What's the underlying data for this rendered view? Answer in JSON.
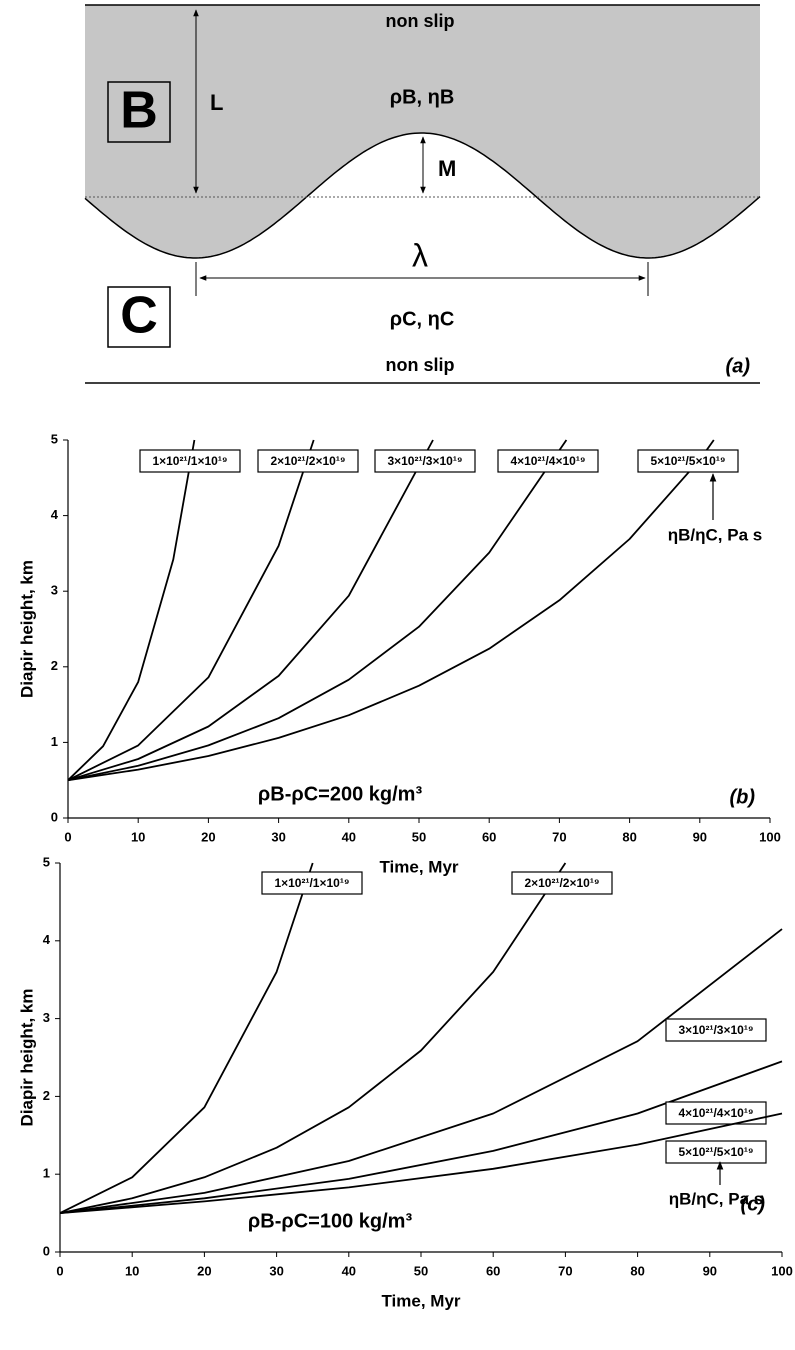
{
  "diagram": {
    "top_label": "non slip",
    "bottom_label": "non slip",
    "upper_layer": "B",
    "lower_layer": "C",
    "thickness": "L",
    "amplitude": "M",
    "wavelength": "λ",
    "upper_props": "ρB, ηB",
    "lower_props": "ρC, ηC",
    "panel": "(a)"
  },
  "chart_data": [
    {
      "type": "line",
      "panel": "(b)",
      "annotation": "ρB-ρC=200 kg/m³",
      "legend_title": "ηB/ηC, Pa s",
      "x_label": "Time, Myr",
      "y_label": "Diapir height, km",
      "xlim": [
        0,
        100
      ],
      "xticks": [
        0,
        10,
        20,
        30,
        40,
        50,
        60,
        70,
        80,
        90,
        100
      ],
      "ylim": [
        0,
        5
      ],
      "yticks": [
        0,
        1,
        2,
        3,
        4,
        5
      ],
      "series": [
        {
          "name": "1×10²¹/1×10¹⁹",
          "color": "#000000",
          "x": [
            0,
            5,
            10,
            15,
            18
          ],
          "values": [
            0.5,
            0.95,
            1.8,
            3.42,
            5.0
          ]
        },
        {
          "name": "2×10²¹/2×10¹⁹",
          "color": "#000000",
          "x": [
            0,
            10,
            20,
            30,
            35
          ],
          "values": [
            0.5,
            0.96,
            1.86,
            3.6,
            5.0
          ]
        },
        {
          "name": "3×10²¹/3×10¹⁹",
          "color": "#000000",
          "x": [
            0,
            10,
            20,
            30,
            40,
            52
          ],
          "values": [
            0.5,
            0.78,
            1.21,
            1.88,
            2.94,
            5.0
          ]
        },
        {
          "name": "4×10²¹/4×10¹⁹",
          "color": "#000000",
          "x": [
            0,
            10,
            20,
            30,
            40,
            50,
            60,
            71
          ],
          "values": [
            0.5,
            0.69,
            0.96,
            1.32,
            1.83,
            2.53,
            3.51,
            5.0
          ]
        },
        {
          "name": "5×10²¹/5×10¹⁹",
          "color": "#000000",
          "x": [
            0,
            10,
            20,
            30,
            40,
            50,
            60,
            70,
            80,
            90,
            92
          ],
          "values": [
            0.5,
            0.64,
            0.82,
            1.06,
            1.36,
            1.75,
            2.24,
            2.88,
            3.69,
            4.74,
            5.0
          ]
        }
      ]
    },
    {
      "type": "line",
      "panel": "(c)",
      "annotation": "ρB-ρC=100 kg/m³",
      "legend_title": "ηB/ηC, Pa s",
      "x_label": "Time, Myr",
      "y_label": "Diapir height, km",
      "xlim": [
        0,
        100
      ],
      "xticks": [
        0,
        10,
        20,
        30,
        40,
        50,
        60,
        70,
        80,
        90,
        100
      ],
      "ylim": [
        0,
        5
      ],
      "yticks": [
        0,
        1,
        2,
        3,
        4,
        5
      ],
      "series": [
        {
          "name": "1×10²¹/1×10¹⁹",
          "color": "#000000",
          "x": [
            0,
            10,
            20,
            30,
            35
          ],
          "values": [
            0.5,
            0.96,
            1.86,
            3.6,
            5.0
          ]
        },
        {
          "name": "2×10²¹/2×10¹⁹",
          "color": "#000000",
          "x": [
            0,
            10,
            20,
            30,
            40,
            50,
            60,
            70
          ],
          "values": [
            0.5,
            0.69,
            0.96,
            1.34,
            1.86,
            2.59,
            3.6,
            5.0
          ]
        },
        {
          "name": "3×10²¹/3×10¹⁹",
          "color": "#000000",
          "x": [
            0,
            20,
            40,
            60,
            80,
            100
          ],
          "values": [
            0.5,
            0.76,
            1.17,
            1.78,
            2.71,
            4.15
          ]
        },
        {
          "name": "4×10²¹/4×10¹⁹",
          "color": "#000000",
          "x": [
            0,
            20,
            40,
            60,
            80,
            100
          ],
          "values": [
            0.5,
            0.69,
            0.94,
            1.3,
            1.78,
            2.45
          ]
        },
        {
          "name": "5×10²¹/5×10¹⁹",
          "color": "#000000",
          "x": [
            0,
            20,
            40,
            60,
            80,
            100
          ],
          "values": [
            0.5,
            0.65,
            0.83,
            1.07,
            1.38,
            1.78
          ]
        }
      ]
    }
  ]
}
